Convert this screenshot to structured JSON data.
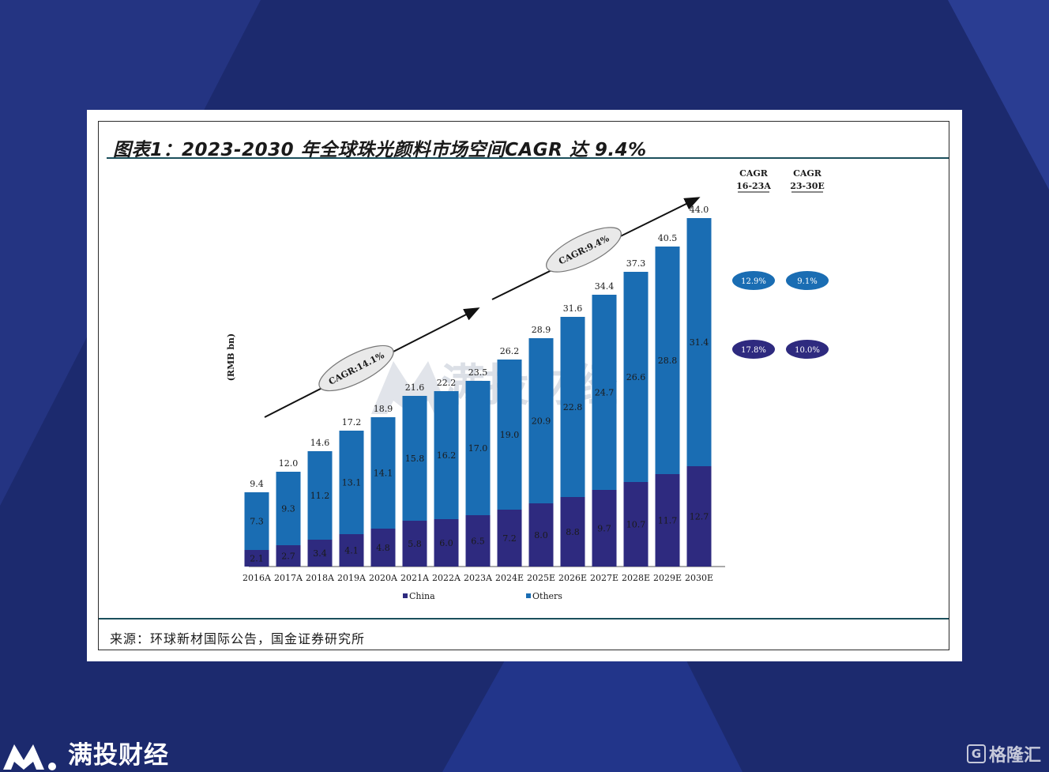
{
  "figure": {
    "title": "图表1：2023-2030 年全球珠光颜料市场空间CAGR 达 9.4%",
    "source": "来源：环球新材国际公告，国金证券研究所"
  },
  "branding": {
    "name": "满投财经",
    "watermark": "满投财经",
    "corner_logo_letter": "G",
    "corner_logo_text": "格隆汇"
  },
  "colors": {
    "background": "#1c2a6e",
    "china": "#2e2a7f",
    "others": "#1a6db3",
    "rule": "#1b4f5c"
  },
  "chart_data": {
    "type": "bar",
    "stacked": true,
    "ylabel": "(RMB bn)",
    "categories": [
      "2016A",
      "2017A",
      "2018A",
      "2019A",
      "2020A",
      "2021A",
      "2022A",
      "2023A",
      "2024E",
      "2025E",
      "2026E",
      "2027E",
      "2028E",
      "2029E",
      "2030E"
    ],
    "series": [
      {
        "name": "China",
        "color": "#2e2a7f",
        "values": [
          2.1,
          2.7,
          3.4,
          4.1,
          4.8,
          5.8,
          6.0,
          6.5,
          7.2,
          8.0,
          8.8,
          9.7,
          10.7,
          11.7,
          12.7
        ]
      },
      {
        "name": "Others",
        "color": "#1a6db3",
        "values": [
          7.3,
          9.3,
          11.2,
          13.1,
          14.1,
          15.8,
          16.2,
          17.0,
          19.0,
          20.9,
          22.8,
          24.7,
          26.6,
          28.8,
          31.4
        ]
      }
    ],
    "totals": [
      9.4,
      12.0,
      14.6,
      17.2,
      18.9,
      21.6,
      22.2,
      23.5,
      26.2,
      28.9,
      31.6,
      34.4,
      37.3,
      40.5,
      44.0
    ],
    "ylim": [
      0,
      44
    ],
    "grid": false,
    "legend": "bottom",
    "annotations": [
      {
        "label": "CAGR:14.1%",
        "from": "2016A",
        "to": "2023A"
      },
      {
        "label": "CAGR:9.4%",
        "from": "2023A",
        "to": "2030E"
      }
    ],
    "cagr_table": {
      "headers": [
        {
          "line1": "CAGR",
          "line2": "16-23A"
        },
        {
          "line1": "CAGR",
          "line2": "23-30E"
        }
      ],
      "rows": [
        {
          "series": "Others",
          "values": [
            "12.9%",
            "9.1%"
          ]
        },
        {
          "series": "China",
          "values": [
            "17.8%",
            "10.0%"
          ]
        }
      ]
    }
  }
}
